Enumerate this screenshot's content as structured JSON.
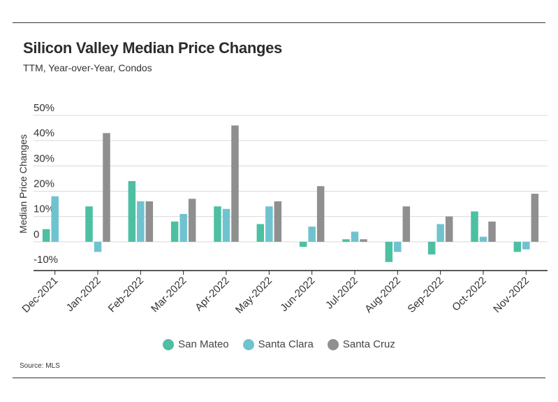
{
  "title": "Silicon Valley Median Price Changes",
  "subtitle": "TTM, Year-over-Year, Condos",
  "source": "Source:  MLS",
  "colors": {
    "San Mateo": "#4dbfa2",
    "Santa Clara": "#6fc3cf",
    "Santa Cruz": "#8f8f8f",
    "grid": "#d9d9d9",
    "axis": "#222222"
  },
  "chart_data": {
    "type": "bar",
    "title": "Silicon Valley Median Price Changes",
    "subtitle": "TTM, Year-over-Year, Condos",
    "xlabel": "",
    "ylabel": "Median Price Changes",
    "categories": [
      "Dec-2021",
      "Jan-2022",
      "Feb-2022",
      "Mar-2022",
      "Apr-2022",
      "May-2022",
      "Jun-2022",
      "Jul-2022",
      "Aug-2022",
      "Sep-2022",
      "Oct-2022",
      "Nov-2022"
    ],
    "series": [
      {
        "name": "San Mateo",
        "values": [
          5,
          14,
          24,
          8,
          14,
          7,
          -2,
          1,
          -8,
          -5,
          12,
          -4
        ]
      },
      {
        "name": "Santa Clara",
        "values": [
          18,
          -4,
          16,
          11,
          13,
          14,
          6,
          4,
          -4,
          7,
          2,
          -3
        ]
      },
      {
        "name": "Santa Cruz",
        "values": [
          0,
          43,
          16,
          17,
          46,
          16,
          22,
          1,
          14,
          10,
          8,
          19
        ]
      }
    ],
    "ylim": [
      -10,
      50
    ],
    "yticks": [
      50,
      40,
      30,
      20,
      10,
      0,
      -10
    ],
    "ytick_labels": [
      "50%",
      "40%",
      "30%",
      "20%",
      "10%",
      "0",
      "-10%"
    ],
    "grid": true,
    "legend": "bottom-center"
  }
}
